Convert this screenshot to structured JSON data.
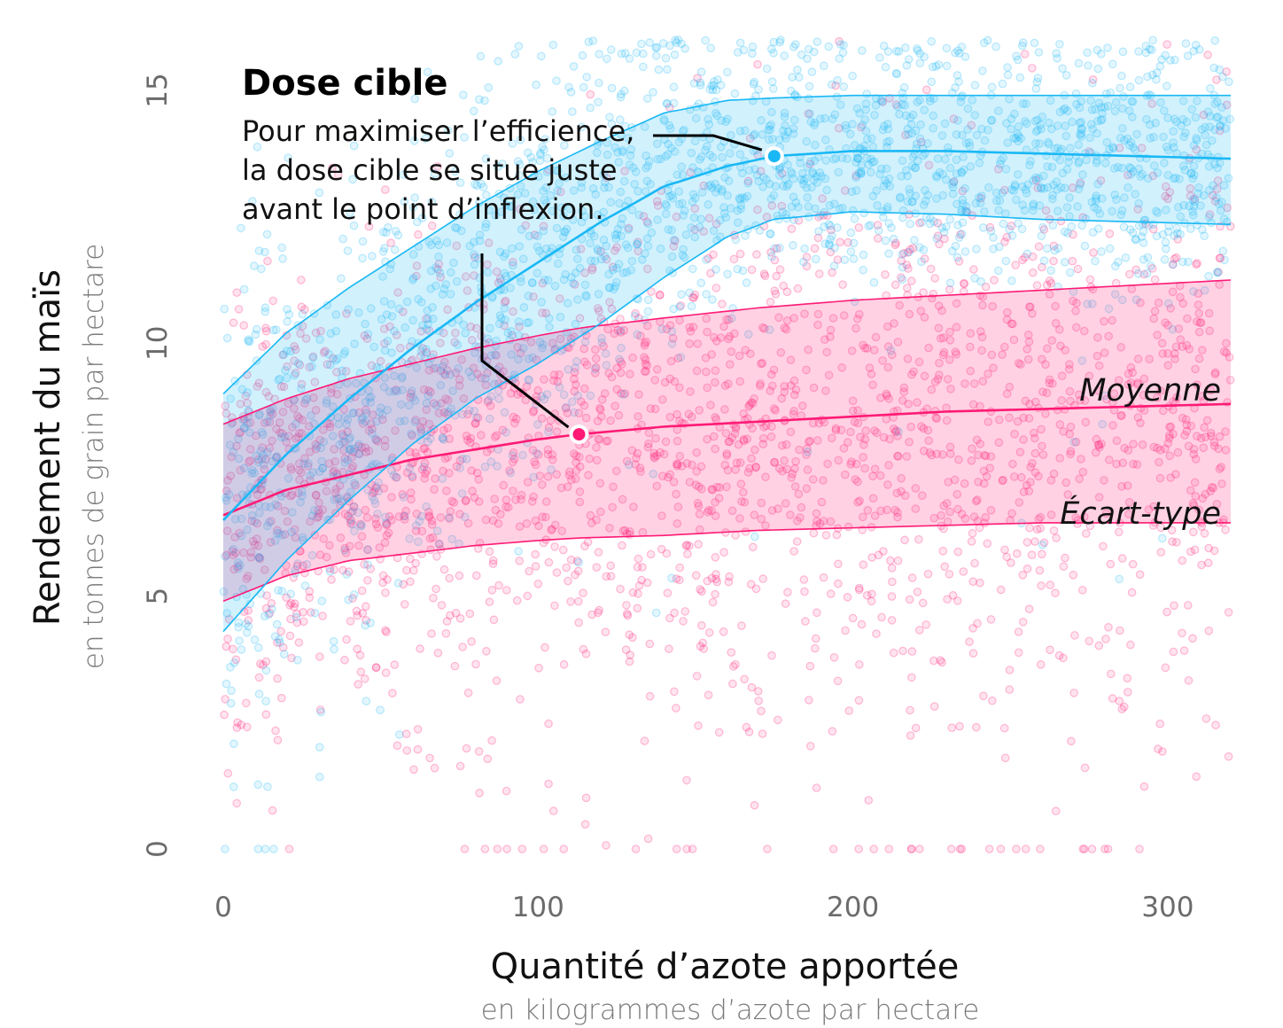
{
  "chart_data": {
    "type": "scatter",
    "xlim": [
      0,
      320
    ],
    "ylim": [
      -0.5,
      16
    ],
    "x_ticks": [
      "0",
      "100",
      "200",
      "300"
    ],
    "y_ticks": [
      "0",
      "5",
      "10",
      "15"
    ],
    "x_tick_values": [
      0,
      100,
      200,
      300
    ],
    "y_tick_values": [
      0,
      5,
      10,
      15
    ],
    "xlabel": "Quantité d’azote apportée",
    "xlabel_sub": "en kilogrammes d’azote par hectare",
    "ylabel": "Rendement du maïs",
    "ylabel_sub": "en tonnes de grain par hectare",
    "grid": false,
    "series": [
      {
        "color": "#ff1a75",
        "x": [
          0,
          20,
          40,
          60,
          80,
          100,
          113,
          140,
          170,
          200,
          230,
          260,
          290,
          320
        ],
        "mean": [
          6.6,
          7.1,
          7.4,
          7.7,
          7.9,
          8.1,
          8.2,
          8.35,
          8.45,
          8.55,
          8.65,
          8.7,
          8.75,
          8.8
        ],
        "upper": [
          8.4,
          8.9,
          9.3,
          9.6,
          9.9,
          10.15,
          10.3,
          10.5,
          10.7,
          10.85,
          10.95,
          11.05,
          11.15,
          11.25
        ],
        "lower": [
          4.9,
          5.4,
          5.7,
          5.85,
          6.0,
          6.1,
          6.15,
          6.2,
          6.3,
          6.35,
          6.4,
          6.45,
          6.45,
          6.45
        ]
      },
      {
        "color": "#19b8f5",
        "x": [
          0,
          20,
          40,
          60,
          80,
          100,
          120,
          140,
          160,
          175,
          200,
          230,
          260,
          290,
          320
        ],
        "mean": [
          6.5,
          7.8,
          8.9,
          9.9,
          10.8,
          11.6,
          12.4,
          13.1,
          13.5,
          13.7,
          13.8,
          13.8,
          13.75,
          13.7,
          13.65
        ],
        "upper": [
          9.0,
          10.2,
          11.1,
          11.9,
          12.7,
          13.4,
          14.0,
          14.55,
          14.8,
          14.85,
          14.9,
          14.9,
          14.9,
          14.9,
          14.9
        ],
        "lower": [
          4.3,
          5.7,
          6.9,
          8.0,
          8.9,
          9.6,
          10.4,
          11.3,
          12.1,
          12.45,
          12.6,
          12.55,
          12.45,
          12.4,
          12.35
        ]
      }
    ],
    "highlight_points": [
      {
        "x": 113,
        "y": 8.2,
        "color": "#ff1a75"
      },
      {
        "x": 175,
        "y": 13.7,
        "color": "#19b8f5"
      }
    ],
    "series_labels": {
      "mean": "Moyenne",
      "sd": "Écart-type"
    },
    "annotation": {
      "title": "Dose cible",
      "lines": [
        "Pour maximiser l’efficience,",
        "la dose cible se situe juste",
        "avant le point d’inflexion."
      ]
    }
  }
}
